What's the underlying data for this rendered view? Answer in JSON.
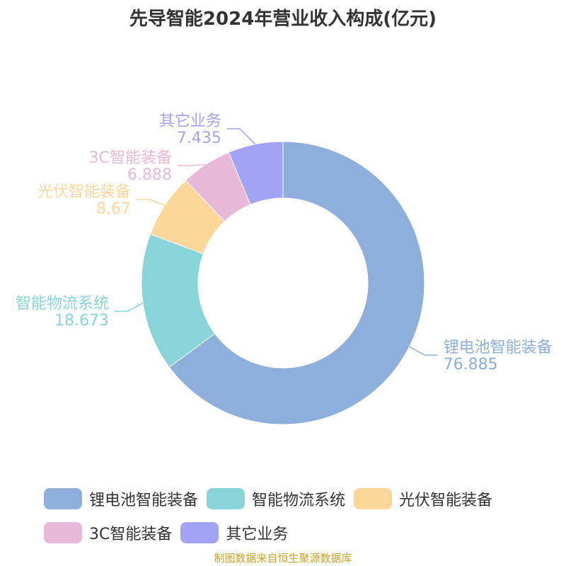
{
  "chart_data": {
    "type": "pie",
    "subtype": "donut",
    "title": "先导智能2024年营业收入构成(亿元)",
    "categories": [
      "锂电池智能装备",
      "智能物流系统",
      "光伏智能装备",
      "3C智能装备",
      "其它业务"
    ],
    "values": [
      76.885,
      18.673,
      8.67,
      6.888,
      7.435
    ],
    "value_labels": [
      "76.885",
      "18.673",
      "8.67",
      "6.888",
      "7.435"
    ],
    "colors": [
      "#8eaedb",
      "#87d5d9",
      "#fdd69a",
      "#e8b8d8",
      "#a3a3f5"
    ],
    "legend_position": "bottom"
  },
  "source": "制图数据来自恒生聚源数据库"
}
